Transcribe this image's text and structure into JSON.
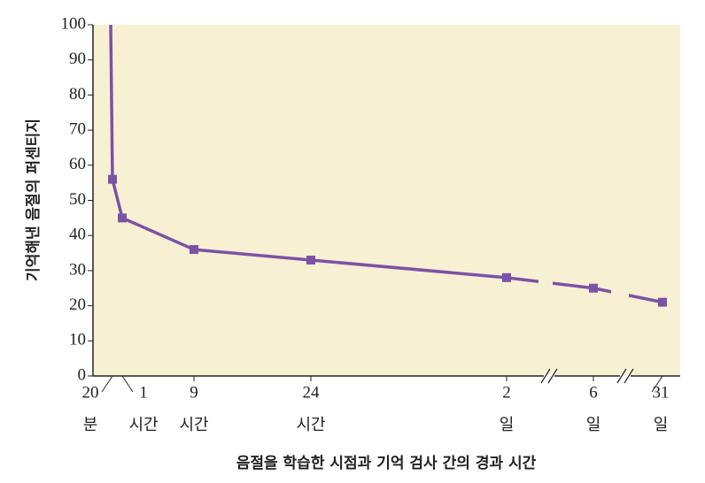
{
  "chart_data": {
    "type": "line",
    "y_label": "기억해낸 음절의 퍼센티지",
    "x_label": "음절을 학습한 시점과 기억 검사 간의 경과 시간",
    "categories": [
      null,
      {
        "number": "20",
        "unit": "분"
      },
      {
        "number": "1",
        "unit": "시간"
      },
      {
        "number": "9",
        "unit": "시간"
      },
      {
        "number": "24",
        "unit": "시간"
      },
      {
        "number": "2",
        "unit": "일"
      },
      {
        "number": "6",
        "unit": "일"
      },
      {
        "number": "31",
        "unit": "일"
      }
    ],
    "values": [
      100,
      56,
      45,
      36,
      33,
      28,
      25,
      21
    ],
    "color": "#7b52a6",
    "background": "#f8f0d2",
    "ylim": [
      0,
      100
    ],
    "yticks": [
      0,
      10,
      20,
      30,
      40,
      50,
      60,
      70,
      80,
      90,
      100
    ]
  }
}
